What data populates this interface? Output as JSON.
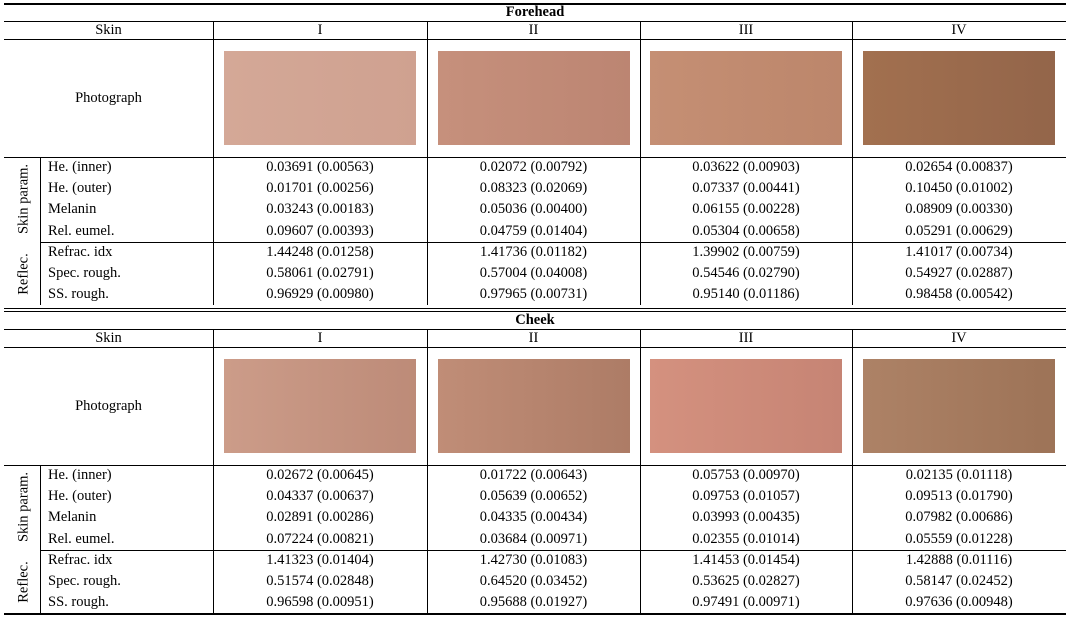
{
  "sections": [
    {
      "title": "Forehead",
      "header": [
        "Skin",
        "I",
        "II",
        "III",
        "IV"
      ],
      "photo_label": "Photograph",
      "groups": [
        {
          "label": "Skin param.",
          "rows": [
            [
              "He. (inner)",
              "0.03691 (0.00563)",
              "0.02072 (0.00792)",
              "0.03622 (0.00903)",
              "0.02654 (0.00837)"
            ],
            [
              "He. (outer)",
              "0.01701 (0.00256)",
              "0.08323 (0.02069)",
              "0.07337 (0.00441)",
              "0.10450 (0.01002)"
            ],
            [
              "Melanin",
              "0.03243 (0.00183)",
              "0.05036 (0.00400)",
              "0.06155 (0.00228)",
              "0.08909 (0.00330)"
            ],
            [
              "Rel. eumel.",
              "0.09607 (0.00393)",
              "0.04759 (0.01404)",
              "0.05304 (0.00658)",
              "0.05291 (0.00629)"
            ]
          ]
        },
        {
          "label": "Reflec.",
          "rows": [
            [
              "Refrac. idx",
              "1.44248 (0.01258)",
              "1.41736 (0.01182)",
              "1.39902 (0.00759)",
              "1.41017 (0.00734)"
            ],
            [
              "Spec. rough.",
              "0.58061 (0.02791)",
              "0.57004 (0.04008)",
              "0.54546 (0.02790)",
              "0.54927 (0.02887)"
            ],
            [
              "SS. rough.",
              "0.96929 (0.00980)",
              "0.97965 (0.00731)",
              "0.95140 (0.01186)",
              "0.98458 (0.00542)"
            ]
          ]
        }
      ]
    },
    {
      "title": "Cheek",
      "header": [
        "Skin",
        "I",
        "II",
        "III",
        "IV"
      ],
      "photo_label": "Photograph",
      "groups": [
        {
          "label": "Skin param.",
          "rows": [
            [
              "He. (inner)",
              "0.02672 (0.00645)",
              "0.01722 (0.00643)",
              "0.05753 (0.00970)",
              "0.02135 (0.01118)"
            ],
            [
              "He. (outer)",
              "0.04337 (0.00637)",
              "0.05639 (0.00652)",
              "0.09753 (0.01057)",
              "0.09513 (0.01790)"
            ],
            [
              "Melanin",
              "0.02891 (0.00286)",
              "0.04335 (0.00434)",
              "0.03993 (0.00435)",
              "0.07982 (0.00686)"
            ],
            [
              "Rel. eumel.",
              "0.07224 (0.00821)",
              "0.03684 (0.00971)",
              "0.02355 (0.01014)",
              "0.05559 (0.01228)"
            ]
          ]
        },
        {
          "label": "Reflec.",
          "rows": [
            [
              "Refrac. idx",
              "1.41323 (0.01404)",
              "1.42730 (0.01083)",
              "1.41453 (0.01454)",
              "1.42888 (0.01116)"
            ],
            [
              "Spec. rough.",
              "0.51574 (0.02848)",
              "0.64520 (0.03452)",
              "0.53625 (0.02827)",
              "0.58147 (0.02452)"
            ],
            [
              "SS. rough.",
              "0.96598 (0.00951)",
              "0.95688 (0.01927)",
              "0.97491 (0.00971)",
              "0.97636 (0.00948)"
            ]
          ]
        }
      ]
    }
  ]
}
